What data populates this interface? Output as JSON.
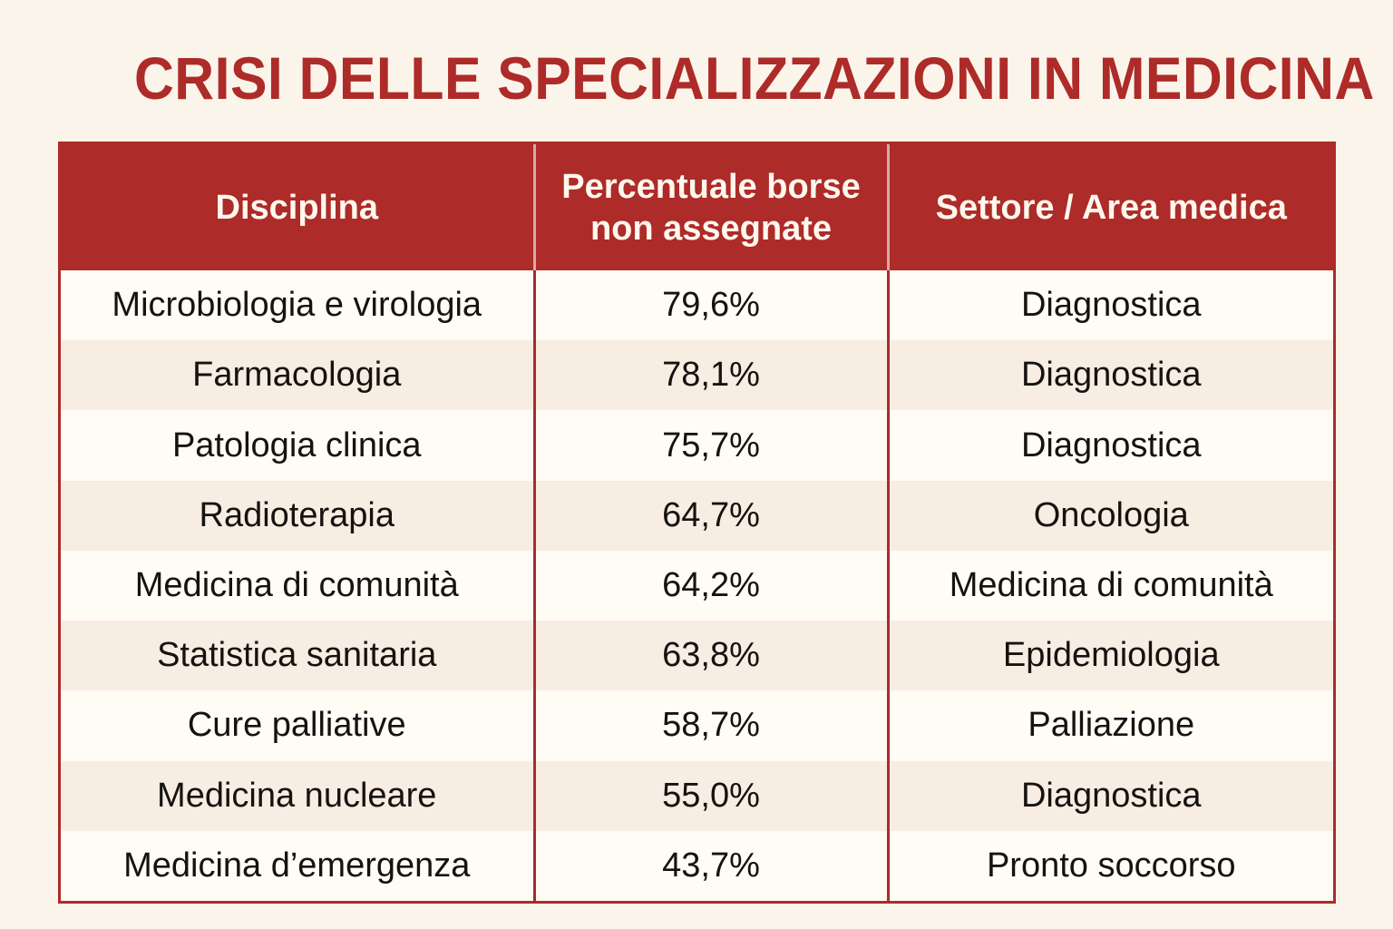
{
  "title": "CRISI DELLE SPECIALIZZAZIONI IN MEDICINA",
  "chart_data": {
    "type": "table",
    "title": "CRISI DELLE SPECIALIZZAZIONI IN MEDICINA",
    "columns": [
      "Disciplina",
      "Percentuale borse non assegnate",
      "Settore / Area medica"
    ],
    "column_header_lines": [
      [
        "Disciplina"
      ],
      [
        "Percentuale borse",
        "non assegnate"
      ],
      [
        "Settore / Area medica"
      ]
    ],
    "rows": [
      [
        "Microbiologia e virologia",
        "79,6%",
        "Diagnostica"
      ],
      [
        "Farmacologia",
        "78,1%",
        "Diagnostica"
      ],
      [
        "Patologia clinica",
        "75,7%",
        "Diagnostica"
      ],
      [
        "Radioterapia",
        "64,7%",
        "Oncologia"
      ],
      [
        "Medicina di comunità",
        "64,2%",
        "Medicina di comunità"
      ],
      [
        "Statistica sanitaria",
        "63,8%",
        "Epidemiologia"
      ],
      [
        "Cure palliative",
        "58,7%",
        "Palliazione"
      ],
      [
        "Medicina nucleare",
        "55,0%",
        "Diagnostica"
      ],
      [
        "Medicina d’emergenza",
        "43,7%",
        "Pronto soccorso"
      ]
    ],
    "values": [
      79.6,
      78.1,
      75.7,
      64.7,
      64.2,
      63.8,
      58.7,
      55.0,
      43.7
    ]
  },
  "colors": {
    "accent": "#ad2b28",
    "background": "#fbf4ea",
    "row_alt": "#f7ede2",
    "header_text": "#fff8ef",
    "body_text": "#16120f"
  }
}
